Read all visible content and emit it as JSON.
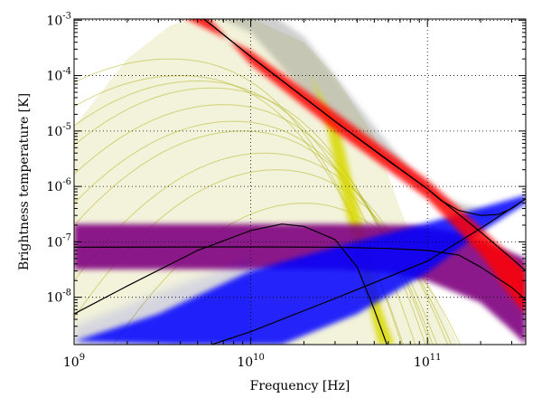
{
  "chart_data": {
    "type": "line",
    "xlabel": "Frequency [Hz]",
    "ylabel": "Brightness temperature [K]",
    "xscale": "log",
    "yscale": "log",
    "xlim": [
      1000000000.0,
      360000000000.0
    ],
    "ylim": [
      1.4e-09,
      0.00105
    ],
    "grid": true,
    "x_ticks": [
      {
        "base": "10",
        "exp": "9",
        "value": 1000000000.0
      },
      {
        "base": "10",
        "exp": "10",
        "value": 10000000000.0
      },
      {
        "base": "10",
        "exp": "11",
        "value": 100000000000.0
      }
    ],
    "y_ticks": [
      {
        "base": "10",
        "exp": "-8",
        "value": 1e-08
      },
      {
        "base": "10",
        "exp": "-7",
        "value": 1e-07
      },
      {
        "base": "10",
        "exp": "-6",
        "value": 1e-06
      },
      {
        "base": "10",
        "exp": "-5",
        "value": 1e-05
      },
      {
        "base": "10",
        "exp": "-4",
        "value": 0.0001
      },
      {
        "base": "10",
        "exp": "-3",
        "value": 0.001
      }
    ],
    "bands": [
      {
        "component": "olive-curves",
        "color": "#a8a800"
      },
      {
        "component": "yellow-curves",
        "color": "#d8d800"
      },
      {
        "component": "gray-curves",
        "color": "#505050"
      },
      {
        "component": "red-band",
        "color": "#ff0000"
      },
      {
        "component": "purple-band",
        "color": "#800080"
      },
      {
        "component": "blue-band",
        "color": "#0000ff"
      }
    ],
    "series": [
      {
        "color": "#000000",
        "points": [
          [
            5000000000.0,
            0.0013
          ],
          [
            10000000000.0,
            0.00022
          ],
          [
            30000000000.0,
            1.5e-05
          ],
          [
            60000000000.0,
            2.9e-06
          ],
          [
            100000000000.0,
            9e-07
          ],
          [
            120000000000.0,
            5.5e-07
          ],
          [
            150000000000.0,
            3.7e-07
          ],
          [
            200000000000.0,
            3e-07
          ],
          [
            250000000000.0,
            3.1e-07
          ],
          [
            300000000000.0,
            4e-07
          ],
          [
            360000000000.0,
            6e-07
          ]
        ]
      },
      {
        "color": "#000000",
        "points": [
          [
            5000000000.0,
            0.0013
          ],
          [
            10000000000.0,
            0.00022
          ],
          [
            30000000000.0,
            1.5e-05
          ],
          [
            100000000000.0,
            9e-07
          ],
          [
            200000000000.0,
            1.5e-07
          ],
          [
            300000000000.0,
            5e-08
          ],
          [
            360000000000.0,
            3e-08
          ]
        ]
      },
      {
        "color": "#000000",
        "points": [
          [
            1000000000.0,
            8e-08
          ],
          [
            10000000000.0,
            8.1e-08
          ],
          [
            30000000000.0,
            8e-08
          ],
          [
            60000000000.0,
            7.6e-08
          ],
          [
            100000000000.0,
            7e-08
          ],
          [
            150000000000.0,
            5.8e-08
          ],
          [
            200000000000.0,
            3.5e-08
          ],
          [
            300000000000.0,
            1.5e-08
          ],
          [
            360000000000.0,
            9e-09
          ]
        ]
      },
      {
        "color": "#000000",
        "points": [
          [
            1000000000.0,
            5e-09
          ],
          [
            2000000000.0,
            1.6e-08
          ],
          [
            5000000000.0,
            7e-08
          ],
          [
            10000000000.0,
            1.6e-07
          ],
          [
            15000000000.0,
            2.1e-07
          ],
          [
            20000000000.0,
            1.9e-07
          ],
          [
            30000000000.0,
            1.1e-07
          ],
          [
            40000000000.0,
            3.5e-08
          ],
          [
            50000000000.0,
            6e-09
          ],
          [
            60000000000.0,
            1.2e-09
          ]
        ]
      },
      {
        "color": "#000000",
        "points": [
          [
            6000000000.0,
            1.4e-09
          ],
          [
            10000000000.0,
            2.4e-09
          ],
          [
            30000000000.0,
            9.5e-09
          ],
          [
            100000000000.0,
            4.5e-08
          ],
          [
            200000000000.0,
            1.75e-07
          ],
          [
            360000000000.0,
            6e-07
          ]
        ]
      }
    ]
  }
}
